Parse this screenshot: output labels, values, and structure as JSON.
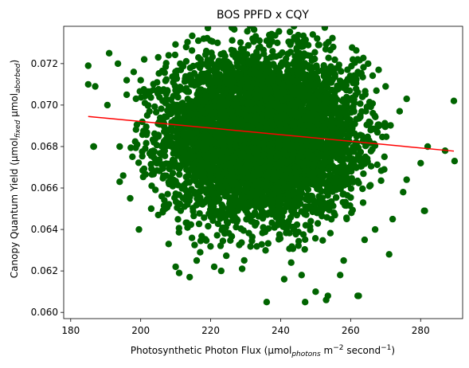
{
  "chart_data": {
    "type": "scatter",
    "title": "BOS PPFD x CQY",
    "xlabel": {
      "prefix": "Photosynthetic Photon Flux (μmol",
      "sub": "photons",
      "mid": " m",
      "sup1": "−2",
      "mid2": " second",
      "sup2": "−1",
      "suffix": ")"
    },
    "ylabel": {
      "prefix": "Canopy Quantum Yield (μmol",
      "sub1": "fixed",
      "mid": " μmol",
      "sub2": "aborbed",
      "suffix": ")"
    },
    "xlim": [
      178,
      292
    ],
    "ylim": [
      0.0597,
      0.0738
    ],
    "xticks": [
      180,
      200,
      220,
      240,
      260,
      280
    ],
    "xtick_labels": [
      "180",
      "200",
      "220",
      "240",
      "260",
      "280"
    ],
    "yticks": [
      0.06,
      0.062,
      0.064,
      0.066,
      0.068,
      0.07,
      0.072
    ],
    "ytick_labels": [
      "0.060",
      "0.062",
      "0.064",
      "0.066",
      "0.068",
      "0.070",
      "0.072"
    ],
    "series": [
      {
        "kind": "scatter",
        "color": "#006400",
        "cloud": {
          "x_mean": 234.5,
          "x_sd": 13.5,
          "y_mean": 0.0685,
          "y_sd": 0.0019,
          "count": 6000
        },
        "points": [
          {
            "x": 185,
            "y": 0.0719
          },
          {
            "x": 185,
            "y": 0.071
          },
          {
            "x": 187,
            "y": 0.0709
          },
          {
            "x": 186.5,
            "y": 0.068
          },
          {
            "x": 186.6,
            "y": 0.068
          },
          {
            "x": 190.5,
            "y": 0.07
          },
          {
            "x": 191,
            "y": 0.0725
          },
          {
            "x": 193.5,
            "y": 0.072
          },
          {
            "x": 194,
            "y": 0.068
          },
          {
            "x": 194,
            "y": 0.0663
          },
          {
            "x": 195,
            "y": 0.0666
          },
          {
            "x": 197,
            "y": 0.0655
          },
          {
            "x": 199.5,
            "y": 0.064
          },
          {
            "x": 196,
            "y": 0.0712
          },
          {
            "x": 198,
            "y": 0.0716
          },
          {
            "x": 201,
            "y": 0.0722
          },
          {
            "x": 203,
            "y": 0.065
          },
          {
            "x": 205,
            "y": 0.0647
          },
          {
            "x": 206,
            "y": 0.0656
          },
          {
            "x": 208,
            "y": 0.0633
          },
          {
            "x": 210,
            "y": 0.0622
          },
          {
            "x": 211,
            "y": 0.0619
          },
          {
            "x": 214,
            "y": 0.0617
          },
          {
            "x": 216,
            "y": 0.0625
          },
          {
            "x": 217,
            "y": 0.0629
          },
          {
            "x": 221,
            "y": 0.0622
          },
          {
            "x": 223,
            "y": 0.062
          },
          {
            "x": 229,
            "y": 0.0621
          },
          {
            "x": 236,
            "y": 0.0605
          },
          {
            "x": 241,
            "y": 0.0616
          },
          {
            "x": 243,
            "y": 0.0624
          },
          {
            "x": 246,
            "y": 0.0618
          },
          {
            "x": 247,
            "y": 0.0605
          },
          {
            "x": 250,
            "y": 0.061
          },
          {
            "x": 253,
            "y": 0.0606
          },
          {
            "x": 253.5,
            "y": 0.0608
          },
          {
            "x": 257,
            "y": 0.0618
          },
          {
            "x": 258,
            "y": 0.0625
          },
          {
            "x": 262,
            "y": 0.0608
          },
          {
            "x": 262.3,
            "y": 0.0608
          },
          {
            "x": 264,
            "y": 0.0635
          },
          {
            "x": 267,
            "y": 0.064
          },
          {
            "x": 271,
            "y": 0.0628
          },
          {
            "x": 272,
            "y": 0.0645
          },
          {
            "x": 275,
            "y": 0.0658
          },
          {
            "x": 276,
            "y": 0.0664
          },
          {
            "x": 280,
            "y": 0.0672
          },
          {
            "x": 281,
            "y": 0.0649
          },
          {
            "x": 281.2,
            "y": 0.0649
          },
          {
            "x": 282,
            "y": 0.068
          },
          {
            "x": 287,
            "y": 0.0678
          },
          {
            "x": 289.5,
            "y": 0.0702
          },
          {
            "x": 289.7,
            "y": 0.0673
          },
          {
            "x": 274,
            "y": 0.0697
          },
          {
            "x": 276,
            "y": 0.0703
          },
          {
            "x": 270,
            "y": 0.0709
          },
          {
            "x": 268,
            "y": 0.0717
          },
          {
            "x": 265,
            "y": 0.072
          },
          {
            "x": 262,
            "y": 0.0722
          },
          {
            "x": 255,
            "y": 0.0728
          },
          {
            "x": 251,
            "y": 0.0729
          },
          {
            "x": 245,
            "y": 0.073
          },
          {
            "x": 236,
            "y": 0.0731
          },
          {
            "x": 232,
            "y": 0.0732
          },
          {
            "x": 220,
            "y": 0.0731
          },
          {
            "x": 218,
            "y": 0.0732
          },
          {
            "x": 213,
            "y": 0.0728
          },
          {
            "x": 208,
            "y": 0.0724
          },
          {
            "x": 205,
            "y": 0.0723
          },
          {
            "x": 200,
            "y": 0.0712
          },
          {
            "x": 196,
            "y": 0.0705
          }
        ]
      },
      {
        "kind": "line",
        "color": "#ff0000",
        "x": [
          185,
          289.5
        ],
        "y": [
          0.06945,
          0.06778
        ]
      }
    ]
  }
}
